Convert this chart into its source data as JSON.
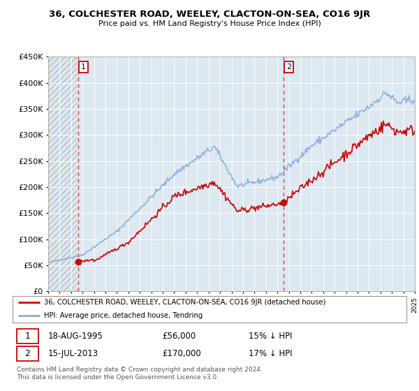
{
  "title": "36, COLCHESTER ROAD, WEELEY, CLACTON-ON-SEA, CO16 9JR",
  "subtitle": "Price paid vs. HM Land Registry's House Price Index (HPI)",
  "legend_property": "36, COLCHESTER ROAD, WEELEY, CLACTON-ON-SEA, CO16 9JR (detached house)",
  "legend_hpi": "HPI: Average price, detached house, Tendring",
  "purchase1_date": "18-AUG-1995",
  "purchase1_price": "£56,000",
  "purchase1_hpi": "15% ↓ HPI",
  "purchase1_year": 1995.63,
  "purchase1_value": 56000,
  "purchase2_date": "15-JUL-2013",
  "purchase2_price": "£170,000",
  "purchase2_hpi": "17% ↓ HPI",
  "purchase2_year": 2013.54,
  "purchase2_value": 170000,
  "property_line_color": "#cc0000",
  "hpi_line_color": "#88aadd",
  "dashed_line_color": "#dd4444",
  "background_color": "#ffffff",
  "plot_bg_color": "#dde8f0",
  "ylim": [
    0,
    450000
  ],
  "yticks": [
    0,
    50000,
    100000,
    150000,
    200000,
    250000,
    300000,
    350000,
    400000,
    450000
  ],
  "footer": "Contains HM Land Registry data © Crown copyright and database right 2024.\nThis data is licensed under the Open Government Licence v3.0.",
  "box_color": "#cc0000",
  "grid_color": "#ffffff",
  "hatch_color": "#bbbbbb"
}
